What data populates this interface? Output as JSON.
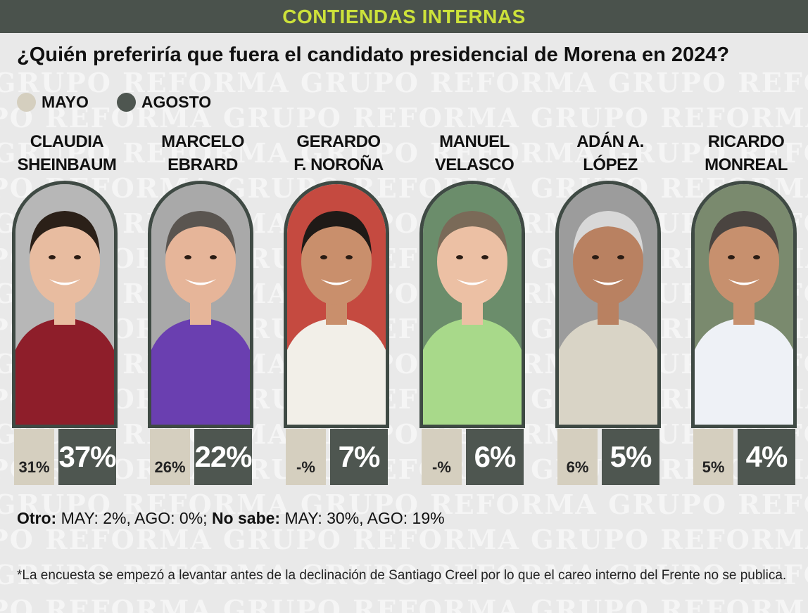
{
  "header": {
    "title": "CONTIENDAS INTERNAS"
  },
  "watermark_text": "GRUPO REFORMA",
  "question": "¿Quién preferiría que fuera el candidato presidencial de Morena en 2024?",
  "legend": [
    {
      "label": "MAYO",
      "color": "#d5cfbf"
    },
    {
      "label": "AGOSTO",
      "color": "#4e5650"
    }
  ],
  "chart_data": {
    "type": "bar",
    "title": "¿Quién preferiría que fuera el candidato presidencial de Morena en 2024?",
    "categories": [
      "CLAUDIA SHEINBAUM",
      "MARCELO EBRARD",
      "GERARDO F. NOROÑA",
      "MANUEL VELASCO",
      "ADÁN A. LÓPEZ",
      "RICARDO MONREAL"
    ],
    "series": [
      {
        "name": "MAYO",
        "values": [
          31,
          26,
          null,
          null,
          6,
          5
        ]
      },
      {
        "name": "AGOSTO",
        "values": [
          37,
          22,
          7,
          6,
          5,
          4
        ]
      }
    ],
    "legend_position": "top-left"
  },
  "candidates": [
    {
      "line1": "CLAUDIA",
      "line2": "SHEINBAUM",
      "mayo_label": "31%",
      "agosto_label": "37%",
      "skin": "#e8bca0",
      "hair": "#2b2018",
      "shirt": "#8e1e2a",
      "bg": "#b7b7b7"
    },
    {
      "line1": "MARCELO",
      "line2": "EBRARD",
      "mayo_label": "26%",
      "agosto_label": "22%",
      "skin": "#e6b599",
      "hair": "#5a5550",
      "shirt": "#6a3fb0",
      "bg": "#a9a9a9"
    },
    {
      "line1": "GERARDO",
      "line2": "F. NOROÑA",
      "mayo_label": "-%",
      "agosto_label": "7%",
      "skin": "#c98f6c",
      "hair": "#1f1a17",
      "shirt": "#f2efe8",
      "bg": "#c54a40"
    },
    {
      "line1": "MANUEL",
      "line2": "VELASCO",
      "mayo_label": "-%",
      "agosto_label": "6%",
      "skin": "#ecc0a4",
      "hair": "#7a6a58",
      "shirt": "#a8d98a",
      "bg": "#6b8d6b"
    },
    {
      "line1": "ADÁN A.",
      "line2": "LÓPEZ",
      "mayo_label": "6%",
      "agosto_label": "5%",
      "skin": "#b98161",
      "hair": "#d8d8d8",
      "shirt": "#d9d4c6",
      "bg": "#9c9c9c"
    },
    {
      "line1": "RICARDO",
      "line2": "MONREAL",
      "mayo_label": "5%",
      "agosto_label": "4%",
      "skin": "#c7906e",
      "hair": "#4a4440",
      "shirt": "#eef1f6",
      "bg": "#7a8a6e"
    }
  ],
  "notes": {
    "otro_label": "Otro:",
    "otro_values": " MAY: 2%, AGO: 0%; ",
    "nosabe_label": "No sabe:",
    "nosabe_values": " MAY: 30%, AGO: 19%",
    "footnote": "*La encuesta se empezó a levantar antes de la declinación de Santiago Creel por lo que el careo interno del Frente no se publica."
  }
}
